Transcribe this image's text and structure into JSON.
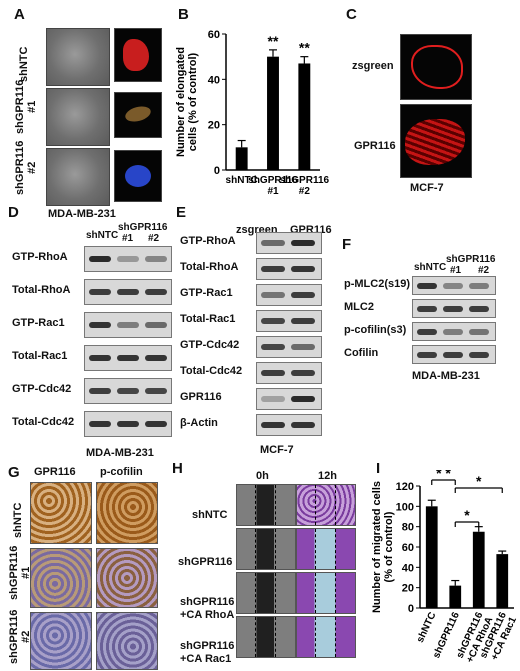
{
  "panels": {
    "A": {
      "label": "A",
      "rows": [
        "shNTC",
        "shGPR116\n#1",
        "shGPR116\n#2"
      ],
      "caption": "MDA-MB-231"
    },
    "B": {
      "label": "B",
      "ylabel": "Number of elongated cells (% of control)"
    },
    "C": {
      "label": "C",
      "rows": [
        "zsgreen",
        "GPR116"
      ],
      "caption": "MCF-7"
    },
    "D": {
      "label": "D",
      "cols": [
        "shNTC",
        "shGPR116",
        "#1",
        "#2"
      ],
      "rows": [
        "GTP-RhoA",
        "Total-RhoA",
        "GTP-Rac1",
        "Total-Rac1",
        "GTP-Cdc42",
        "Total-Cdc42"
      ],
      "caption": "MDA-MB-231"
    },
    "E": {
      "label": "E",
      "cols": [
        "zsgreen",
        "GPR116"
      ],
      "rows": [
        "GTP-RhoA",
        "Total-RhoA",
        "GTP-Rac1",
        "Total-Rac1",
        "GTP-Cdc42",
        "Total-Cdc42",
        "GPR116",
        "β-Actin"
      ],
      "caption": "MCF-7"
    },
    "F": {
      "label": "F",
      "cols": [
        "shNTC",
        "shGPR116",
        "#1",
        "#2"
      ],
      "rows": [
        "p-MLC2(s19)",
        "MLC2",
        "p-cofilin(s3)",
        "Cofilin"
      ],
      "caption": "MDA-MB-231"
    },
    "G": {
      "label": "G",
      "cols": [
        "GPR116",
        "p-cofilin"
      ],
      "rows": [
        "shNTC",
        "shGPR116\n#1",
        "shGPR116\n#2"
      ]
    },
    "H": {
      "label": "H",
      "cols": [
        "0h",
        "12h"
      ],
      "rows": [
        "shNTC",
        "shGPR116",
        "shGPR116\n+CA RhoA",
        "shGPR116\n+CA Rac1"
      ]
    },
    "I": {
      "label": "I",
      "ylabel": "Number of migrated cells (% of control)"
    }
  },
  "chart_data": [
    {
      "type": "bar",
      "panel": "B",
      "categories": [
        "shNTC",
        "shGPR116\n#1",
        "shGPR116\n#2"
      ],
      "values": [
        10,
        50,
        47
      ],
      "errors": [
        3,
        3,
        3
      ],
      "significance": [
        "",
        "**",
        "**"
      ],
      "ylabel": "Number of elongated cells (% of control)",
      "ylim": [
        0,
        60
      ],
      "yticks": [
        0,
        20,
        40,
        60
      ],
      "bar_color": "#000000"
    },
    {
      "type": "bar",
      "panel": "I",
      "categories": [
        "shNTC",
        "shGPR116",
        "shGPR116\n+CA RhoA",
        "shGPR116\n+CA Rac1"
      ],
      "values": [
        100,
        22,
        75,
        53
      ],
      "errors": [
        6,
        5,
        5,
        3
      ],
      "significance_brackets": [
        {
          "from": 0,
          "to": 1,
          "label": "* *"
        },
        {
          "from": 1,
          "to": 2,
          "label": "*"
        },
        {
          "from": 1,
          "to": 3,
          "label": "*"
        }
      ],
      "ylabel": "Number of migrated cells (% of control)",
      "ylim": [
        0,
        120
      ],
      "yticks": [
        0,
        20,
        40,
        60,
        80,
        100,
        120
      ],
      "bar_color": "#000000"
    }
  ]
}
